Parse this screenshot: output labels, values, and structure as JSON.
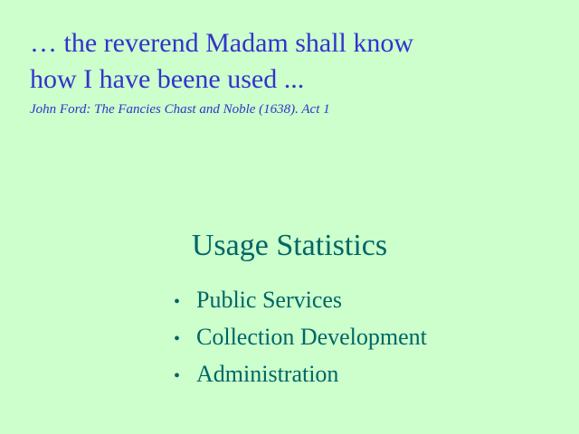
{
  "quote": {
    "lines": [
      "… the reverend Madam shall know",
      "how I have beene used ..."
    ],
    "citation": "John Ford: The Fancies Chast and Noble (1638). Act 1"
  },
  "section": {
    "title": "Usage Statistics",
    "bullet_glyph": "•",
    "items": [
      "Public Services",
      "Collection Development",
      "Administration"
    ]
  },
  "colors": {
    "background": "#ccffcc",
    "quote_text": "#3333cc",
    "body_text": "#006666"
  }
}
